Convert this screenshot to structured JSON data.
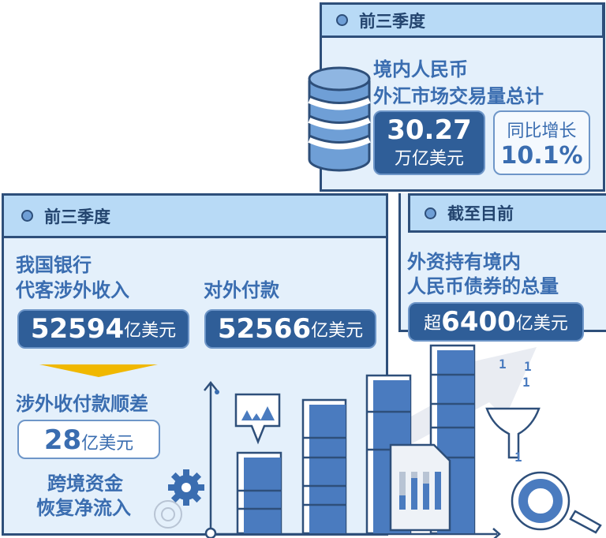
{
  "top_panel": {
    "header": "前三季度",
    "title_line1": "境内人民币",
    "title_line2": "外汇市场交易量总计",
    "value": "30.27",
    "value_unit": "万亿美元",
    "growth_label": "同比增长",
    "growth_value": "10.1%"
  },
  "left_panel": {
    "header": "前三季度",
    "income_label_line1": "我国银行",
    "income_label_line2": "代客涉外收入",
    "income_value": "52594",
    "income_unit": "亿美元",
    "payment_label": "对外付款",
    "payment_value": "52566",
    "payment_unit": "亿美元",
    "surplus_label": "涉外收付款顺差",
    "surplus_value": "28",
    "surplus_unit": "亿美元",
    "note_line1": "跨境资金",
    "note_line2": "恢复净流入"
  },
  "right_panel": {
    "header": "截至目前",
    "title_line1": "外资持有境内",
    "title_line2": "人民币债券的总量",
    "prefix": "超",
    "value": "6400",
    "unit": "亿美元"
  },
  "decor": {
    "binary_digit": "1"
  },
  "colors": {
    "dark_blue": "#2f5e98",
    "outline": "#2e4f7a",
    "panel": "#e4f0fb",
    "header": "#b8daf6",
    "bar": "#4a7bbf",
    "arrow": "#f0b800"
  }
}
